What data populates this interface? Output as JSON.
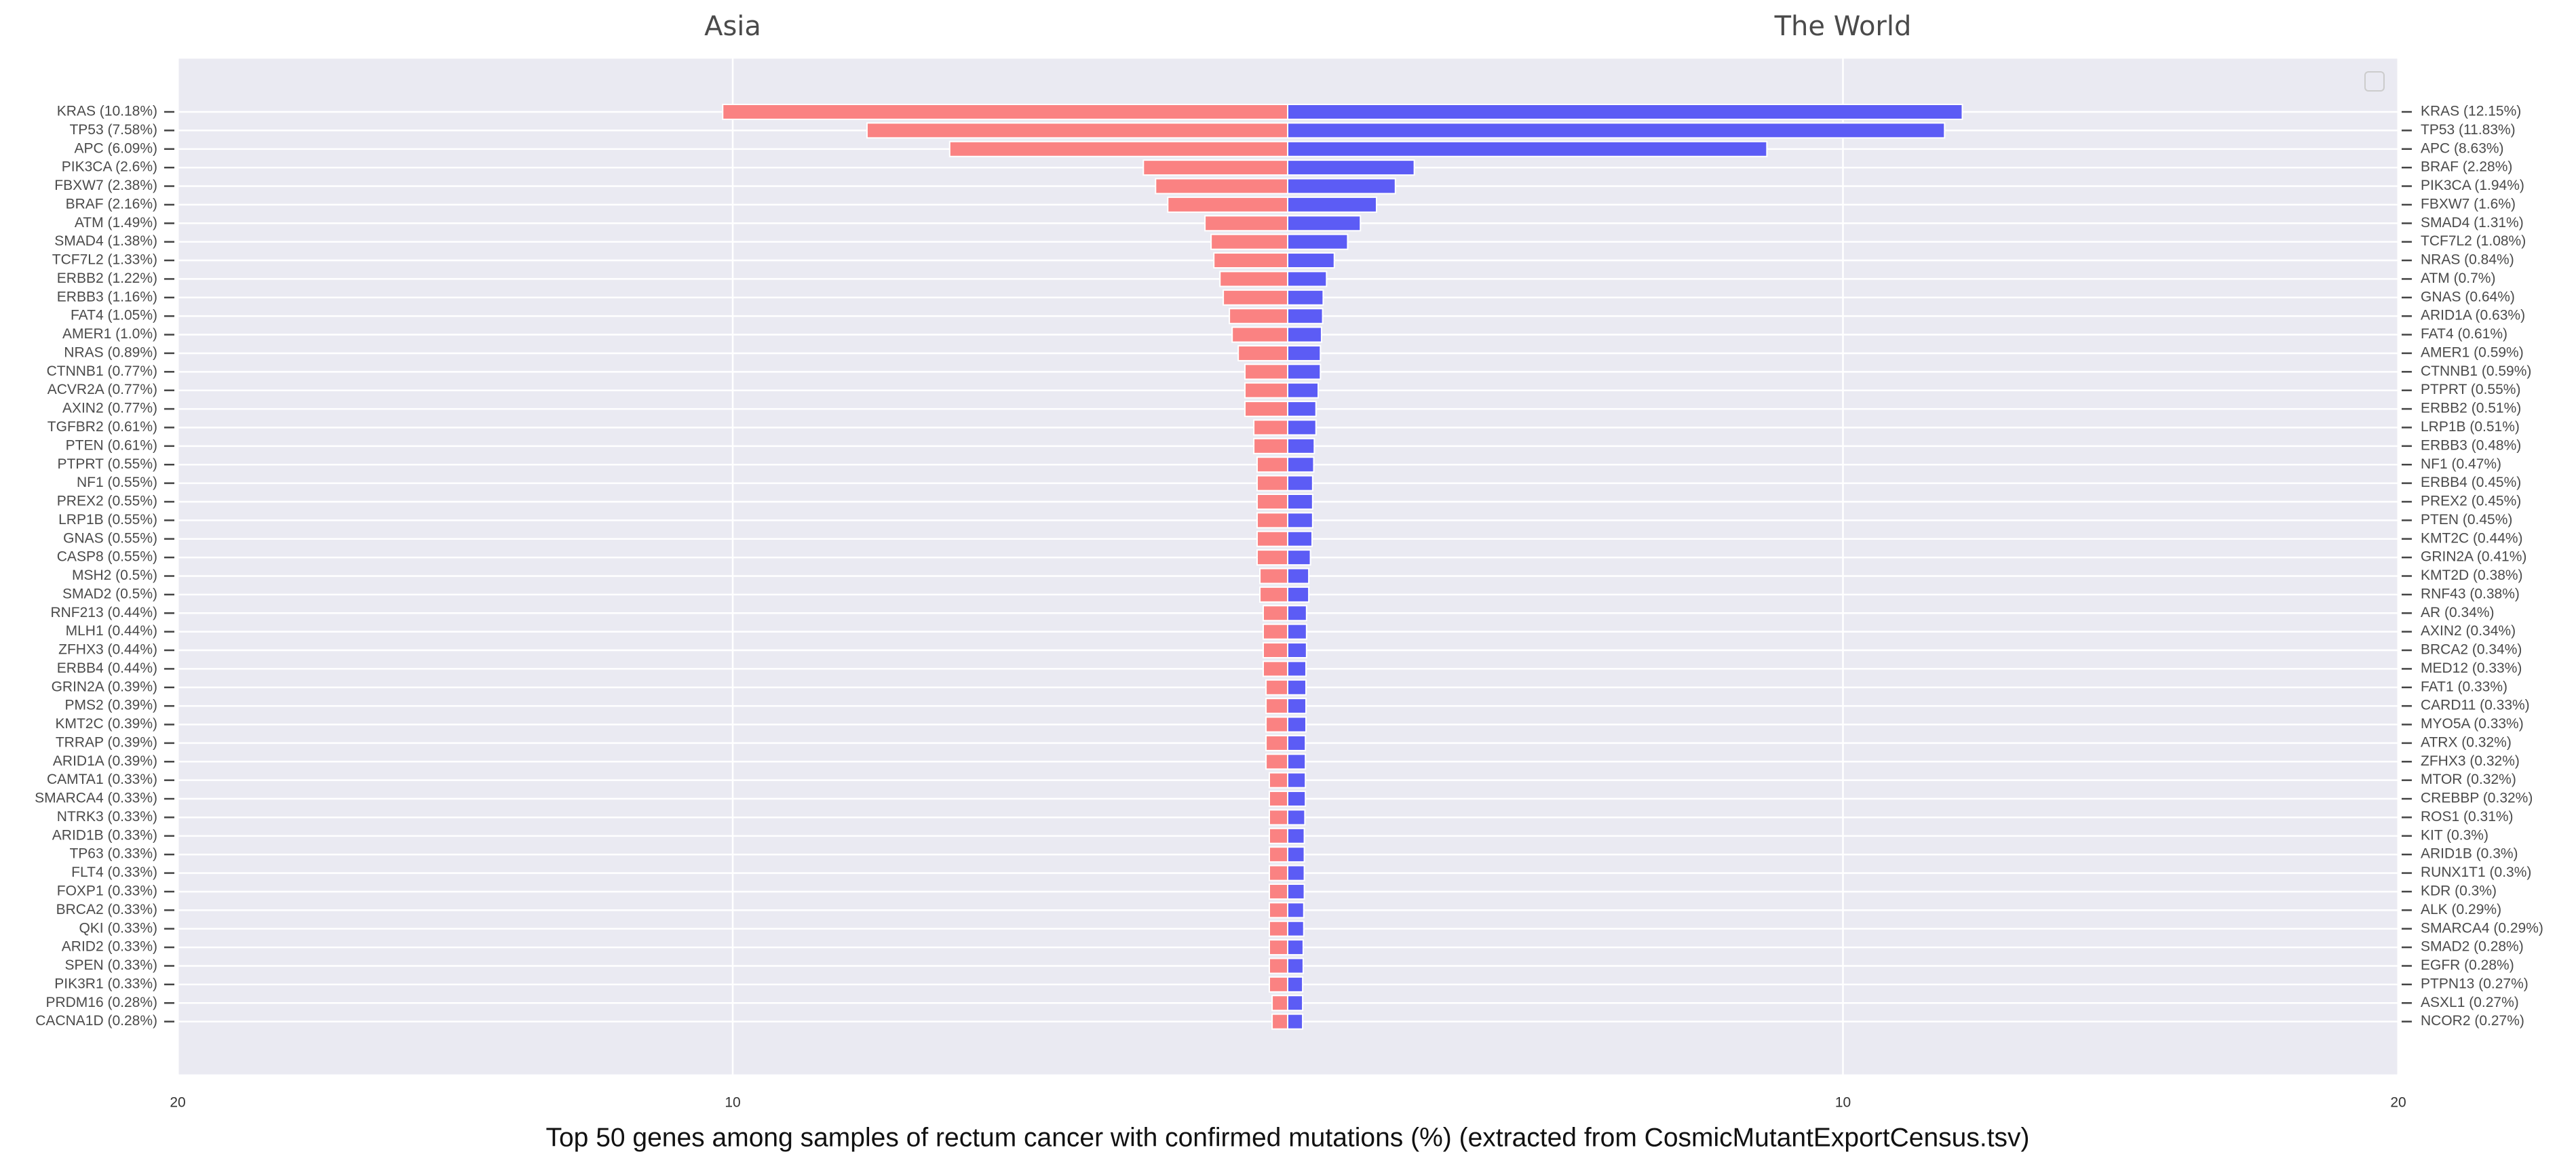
{
  "title": "Top 50 genes among samples of rectum cancer with confirmed mutations (%) (extracted from CosmicMutantExportCensus.tsv)",
  "chart_data": [
    {
      "type": "bar",
      "orientation": "horizontal",
      "title": "Asia",
      "title_color": "#f05a5a",
      "color": "#fa8282",
      "categories": [
        "KRAS (10.18%)",
        "TP53 (7.58%)",
        "APC (6.09%)",
        "PIK3CA (2.6%)",
        "FBXW7 (2.38%)",
        "BRAF (2.16%)",
        "ATM (1.49%)",
        "SMAD4 (1.38%)",
        "TCF7L2 (1.33%)",
        "ERBB2 (1.22%)",
        "ERBB3 (1.16%)",
        "FAT4 (1.05%)",
        "AMER1 (1.0%)",
        "NRAS (0.89%)",
        "CTNNB1 (0.77%)",
        "ACVR2A (0.77%)",
        "AXIN2 (0.77%)",
        "TGFBR2 (0.61%)",
        "PTEN (0.61%)",
        "PTPRT (0.55%)",
        "NF1 (0.55%)",
        "PREX2 (0.55%)",
        "LRP1B (0.55%)",
        "GNAS (0.55%)",
        "CASP8 (0.55%)",
        "MSH2 (0.5%)",
        "SMAD2 (0.5%)",
        "RNF213 (0.44%)",
        "MLH1 (0.44%)",
        "ZFHX3 (0.44%)",
        "ERBB4 (0.44%)",
        "GRIN2A (0.39%)",
        "PMS2 (0.39%)",
        "KMT2C (0.39%)",
        "TRRAP (0.39%)",
        "ARID1A (0.39%)",
        "CAMTA1 (0.33%)",
        "SMARCA4 (0.33%)",
        "NTRK3 (0.33%)",
        "ARID1B (0.33%)",
        "TP63 (0.33%)",
        "FLT4 (0.33%)",
        "FOXP1 (0.33%)",
        "BRCA2 (0.33%)",
        "QKI (0.33%)",
        "ARID2 (0.33%)",
        "SPEN (0.33%)",
        "PIK3R1 (0.33%)",
        "PRDM16 (0.28%)",
        "CACNA1D (0.28%)"
      ],
      "values": [
        10.18,
        7.58,
        6.09,
        2.6,
        2.38,
        2.16,
        1.49,
        1.38,
        1.33,
        1.22,
        1.16,
        1.05,
        1.0,
        0.89,
        0.77,
        0.77,
        0.77,
        0.61,
        0.61,
        0.55,
        0.55,
        0.55,
        0.55,
        0.55,
        0.55,
        0.5,
        0.5,
        0.44,
        0.44,
        0.44,
        0.44,
        0.39,
        0.39,
        0.39,
        0.39,
        0.39,
        0.33,
        0.33,
        0.33,
        0.33,
        0.33,
        0.33,
        0.33,
        0.33,
        0.33,
        0.33,
        0.33,
        0.33,
        0.28,
        0.28
      ],
      "xlim": [
        20,
        0
      ],
      "xticks": [
        20,
        10
      ],
      "grid": true
    },
    {
      "type": "bar",
      "orientation": "horizontal",
      "title": "The World",
      "title_color": "#3a3ad8",
      "color": "#5c5cf5",
      "categories": [
        "KRAS (12.15%)",
        "TP53 (11.83%)",
        "APC (8.63%)",
        "BRAF (2.28%)",
        "PIK3CA (1.94%)",
        "FBXW7 (1.6%)",
        "SMAD4 (1.31%)",
        "TCF7L2 (1.08%)",
        "NRAS (0.84%)",
        "ATM (0.7%)",
        "GNAS (0.64%)",
        "ARID1A (0.63%)",
        "FAT4 (0.61%)",
        "AMER1 (0.59%)",
        "CTNNB1 (0.59%)",
        "PTPRT (0.55%)",
        "ERBB2 (0.51%)",
        "LRP1B (0.51%)",
        "ERBB3 (0.48%)",
        "NF1 (0.47%)",
        "ERBB4 (0.45%)",
        "PREX2 (0.45%)",
        "PTEN (0.45%)",
        "KMT2C (0.44%)",
        "GRIN2A (0.41%)",
        "KMT2D (0.38%)",
        "RNF43 (0.38%)",
        "AR (0.34%)",
        "AXIN2 (0.34%)",
        "BRCA2 (0.34%)",
        "MED12 (0.33%)",
        "FAT1 (0.33%)",
        "CARD11 (0.33%)",
        "MYO5A (0.33%)",
        "ATRX (0.32%)",
        "ZFHX3 (0.32%)",
        "MTOR (0.32%)",
        "CREBBP (0.32%)",
        "ROS1 (0.31%)",
        "KIT (0.3%)",
        "ARID1B (0.3%)",
        "RUNX1T1 (0.3%)",
        "KDR (0.3%)",
        "ALK (0.29%)",
        "SMARCA4 (0.29%)",
        "SMAD2 (0.28%)",
        "EGFR (0.28%)",
        "PTPN13 (0.27%)",
        "ASXL1 (0.27%)",
        "NCOR2 (0.27%)"
      ],
      "values": [
        12.15,
        11.83,
        8.63,
        2.28,
        1.94,
        1.6,
        1.31,
        1.08,
        0.84,
        0.7,
        0.64,
        0.63,
        0.61,
        0.59,
        0.59,
        0.55,
        0.51,
        0.51,
        0.48,
        0.47,
        0.45,
        0.45,
        0.45,
        0.44,
        0.41,
        0.38,
        0.38,
        0.34,
        0.34,
        0.34,
        0.33,
        0.33,
        0.33,
        0.33,
        0.32,
        0.32,
        0.32,
        0.32,
        0.31,
        0.3,
        0.3,
        0.3,
        0.3,
        0.29,
        0.29,
        0.28,
        0.28,
        0.27,
        0.27,
        0.27
      ],
      "xlim": [
        0,
        20
      ],
      "xticks": [
        10,
        20
      ],
      "grid": true
    }
  ]
}
